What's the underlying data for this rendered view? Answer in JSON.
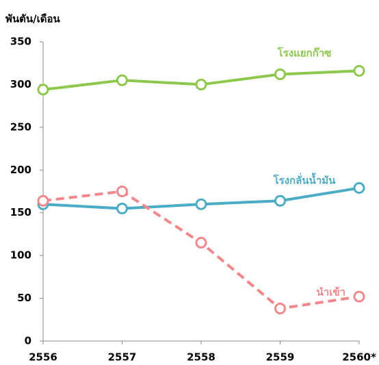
{
  "chart_data": {
    "type": "line",
    "y_axis_label": "พันตัน/เดือน",
    "categories": [
      "2556",
      "2557",
      "2558",
      "2559",
      "2560*"
    ],
    "series": [
      {
        "name": "โรงแยกก๊าซ",
        "color": "#8cc84b",
        "dash": false,
        "values": [
          294,
          305,
          300,
          312,
          316
        ]
      },
      {
        "name": "โรงกลั่นน้ำมัน",
        "color": "#4bacc6",
        "dash": false,
        "values": [
          160,
          155,
          160,
          164,
          179
        ]
      },
      {
        "name": "นำเข้า",
        "color": "#f4868a",
        "dash": true,
        "values": [
          164,
          175,
          115,
          38,
          52
        ]
      }
    ],
    "ylim": [
      0,
      350
    ],
    "yticks": [
      0,
      50,
      100,
      150,
      200,
      250,
      300,
      350
    ]
  }
}
